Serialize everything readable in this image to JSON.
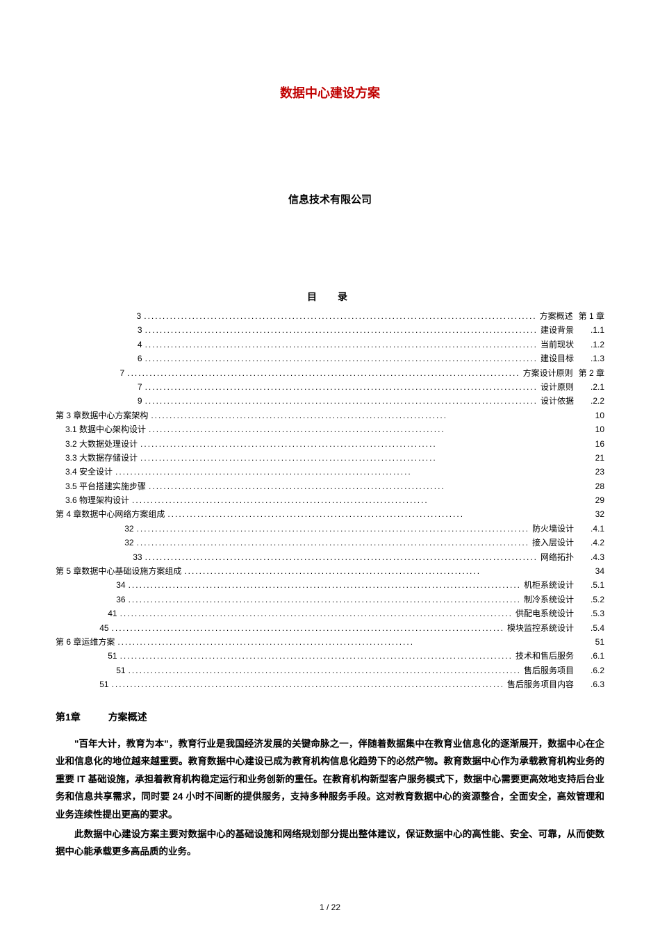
{
  "title": "数据中心建设方案",
  "company": "信息技术有限公司",
  "toc_title": "目　录",
  "toc_right": [
    {
      "page": "3",
      "label": "方案概述",
      "num": "第 1 章",
      "chapter": true
    },
    {
      "page": "3",
      "label": "建设背景",
      "num": ".1.1"
    },
    {
      "page": "4",
      "label": "当前现状",
      "num": ".1.2"
    },
    {
      "page": "6",
      "label": "建设目标",
      "num": ".1.3"
    },
    {
      "page": "7",
      "label": "方案设计原则",
      "num": "第 2 章",
      "chapter": true
    },
    {
      "page": "7",
      "label": "设计原则",
      "num": ".2.1"
    },
    {
      "page": "9",
      "label": "设计依据",
      "num": ".2.2"
    }
  ],
  "toc_left_block1": [
    {
      "label": "第 3 章数据中心方案架构",
      "page": "10",
      "indent": 0
    },
    {
      "label": "3.1 数据中心架构设计",
      "page": "10",
      "indent": 1
    },
    {
      "label": "3.2 大数据处理设计",
      "page": "16",
      "indent": 1
    },
    {
      "label": "3.3 大数据存储设计",
      "page": "21",
      "indent": 1
    },
    {
      "label": "3.4 安全设计",
      "page": "23",
      "indent": 1
    },
    {
      "label": "3.5 平台搭建实施步骤",
      "page": "28",
      "indent": 1
    },
    {
      "label": "3.6 物理架构设计",
      "page": "29",
      "indent": 1
    },
    {
      "label": "第 4 章数据中心网络方案组成",
      "page": "32",
      "indent": 0
    }
  ],
  "toc_right_block2": [
    {
      "page": "32",
      "label": "防火墙设计",
      "num": ".4.1"
    },
    {
      "page": "32",
      "label": "接入层设计",
      "num": ".4.2"
    },
    {
      "page": "33",
      "label": "网络拓扑",
      "num": ".4.3"
    }
  ],
  "toc_left_block2": [
    {
      "label": "第 5 章数据中心基础设施方案组成",
      "page": "34",
      "indent": 0
    }
  ],
  "toc_right_block3": [
    {
      "page": "34",
      "label": "机柜系统设计",
      "num": ".5.1"
    },
    {
      "page": "36",
      "label": "制冷系统设计",
      "num": ".5.2"
    },
    {
      "page": "41",
      "label": "供配电系统设计",
      "num": ".5.3"
    },
    {
      "page": "45",
      "label": "模块监控系统设计",
      "num": ".5.4"
    }
  ],
  "toc_left_block3": [
    {
      "label": "第 6 章运维方案",
      "page": "51",
      "indent": 0
    }
  ],
  "toc_right_block4": [
    {
      "page": "51",
      "label": "技术和售后服务",
      "num": ".6.1"
    },
    {
      "page": "51",
      "label": "售后服务项目",
      "num": ".6.2"
    },
    {
      "page": "51",
      "label": "售后服务项目内容",
      "num": ".6.3"
    }
  ],
  "chapter_heading": {
    "num": "第1章",
    "title": "方案概述"
  },
  "body_paragraphs": [
    "\"百年大计，教育为本\"，教育行业是我国经济发展的关键命脉之一，伴随着数据集中在教育业信息化的逐渐展开，数据中心在企业和信息化的地位越来越重要。教育数据中心建设已成为教育机构信息化趋势下的必然产物。教育数据中心作为承载教育机构业务的重要 IT 基础设施，承担着教育机构稳定运行和业务创新的重任。在教育机构新型客户服务模式下，数据中心需要更高效地支持后台业务和信息共享需求，同时要 24 小时不间断的提供服务，支持多种服务手段。这对教育数据中心的资源整合，全面安全，高效管理和业务连续性提出更高的要求。",
    "此数据中心建设方案主要对数据中心的基础设施和网络规划部分提出整体建议，保证数据中心的高性能、安全、可靠，从而使数据中心能承载更多高品质的业务。"
  ],
  "page_footer": "1 / 22",
  "dots_long": "..........................................................................................................",
  "dots_short": "................................................................................",
  "colors": {
    "title": "#c00000",
    "text": "#000000",
    "bg": "#ffffff"
  }
}
